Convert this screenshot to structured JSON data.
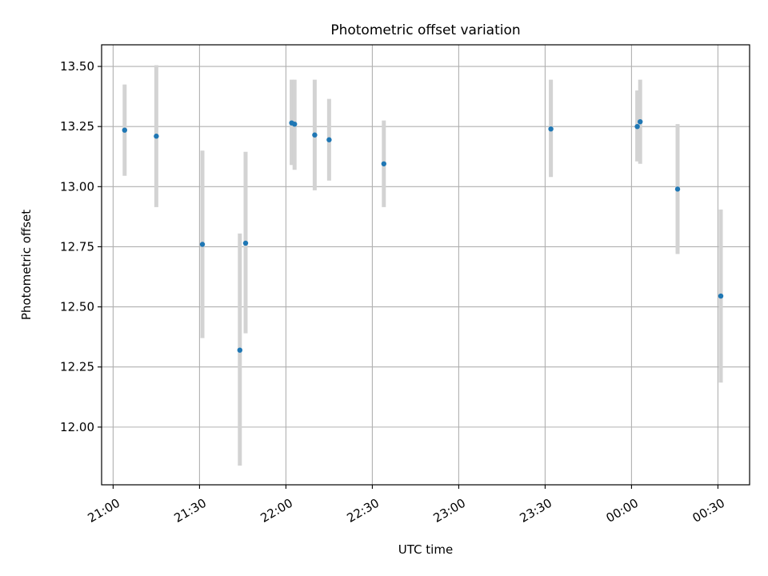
{
  "chart_data": {
    "type": "scatter",
    "title": "Photometric offset variation",
    "xlabel": "UTC time",
    "ylabel": "Photometric offset",
    "x_is_time": true,
    "xlim": [
      "20:56",
      "00:41"
    ],
    "ylim": [
      11.76,
      13.59
    ],
    "x_ticks": [
      {
        "t": "21:00",
        "label": "21:00"
      },
      {
        "t": "21:30",
        "label": "21:30"
      },
      {
        "t": "22:00",
        "label": "22:00"
      },
      {
        "t": "22:30",
        "label": "22:30"
      },
      {
        "t": "23:00",
        "label": "23:00"
      },
      {
        "t": "23:30",
        "label": "23:30"
      },
      {
        "t": "00:00",
        "label": "00:00"
      },
      {
        "t": "00:30",
        "label": "00:30"
      }
    ],
    "y_ticks": [
      12.0,
      12.25,
      12.5,
      12.75,
      13.0,
      13.25,
      13.5
    ],
    "y_tick_labels": [
      "12.00",
      "12.25",
      "12.50",
      "12.75",
      "13.00",
      "13.25",
      "13.50"
    ],
    "grid": true,
    "point_color": "#1f77b4",
    "errorbar_color": "#d3d3d3",
    "points": [
      {
        "t": "21:04",
        "y": 13.235,
        "lo": 13.045,
        "hi": 13.425
      },
      {
        "t": "21:15",
        "y": 13.21,
        "lo": 12.915,
        "hi": 13.505
      },
      {
        "t": "21:31",
        "y": 12.76,
        "lo": 12.37,
        "hi": 13.15
      },
      {
        "t": "21:44",
        "y": 12.32,
        "lo": 11.84,
        "hi": 12.805
      },
      {
        "t": "21:46",
        "y": 12.765,
        "lo": 12.39,
        "hi": 13.145
      },
      {
        "t": "22:02",
        "y": 13.265,
        "lo": 13.09,
        "hi": 13.445
      },
      {
        "t": "22:03",
        "y": 13.26,
        "lo": 13.07,
        "hi": 13.445
      },
      {
        "t": "22:10",
        "y": 13.215,
        "lo": 12.985,
        "hi": 13.445
      },
      {
        "t": "22:15",
        "y": 13.195,
        "lo": 13.025,
        "hi": 13.365
      },
      {
        "t": "22:34",
        "y": 13.095,
        "lo": 12.915,
        "hi": 13.275
      },
      {
        "t": "23:32",
        "y": 13.24,
        "lo": 13.04,
        "hi": 13.445
      },
      {
        "t": "00:02",
        "y": 13.25,
        "lo": 13.105,
        "hi": 13.4
      },
      {
        "t": "00:03",
        "y": 13.27,
        "lo": 13.095,
        "hi": 13.445
      },
      {
        "t": "00:16",
        "y": 12.99,
        "lo": 12.72,
        "hi": 13.26
      },
      {
        "t": "00:31",
        "y": 12.545,
        "lo": 12.185,
        "hi": 12.905
      }
    ]
  }
}
